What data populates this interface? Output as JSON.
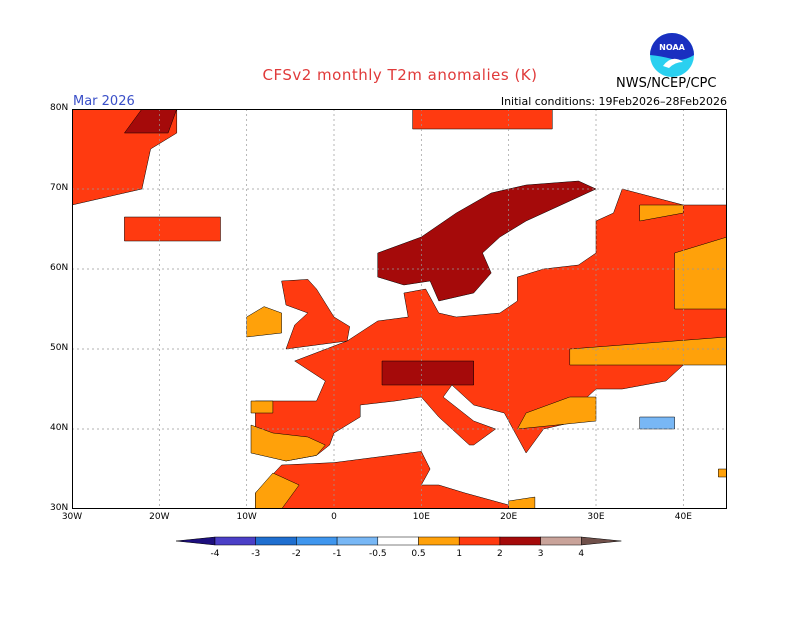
{
  "header": {
    "title": "CFSv2 monthly T2m anomalies (K)",
    "month": "Mar 2026",
    "initial_conditions": "Initial conditions: 19Feb2026–28Feb2026",
    "agency": "NWS/NCEP/CPC",
    "logo_text": "NOAA"
  },
  "axes": {
    "lat_labels": [
      "80N",
      "70N",
      "60N",
      "50N",
      "40N",
      "30N"
    ],
    "lat_values": [
      80,
      70,
      60,
      50,
      40,
      30
    ],
    "lon_labels": [
      "30W",
      "20W",
      "10W",
      "0",
      "10E",
      "20E",
      "30E",
      "40E"
    ],
    "lon_values": [
      -30,
      -20,
      -10,
      0,
      10,
      20,
      30,
      40
    ],
    "lon_range": [
      -30,
      45
    ],
    "lat_range": [
      30,
      80
    ]
  },
  "colorbar": {
    "labels": [
      "-4",
      "-3",
      "-2",
      "-1",
      "-0.5",
      "0.5",
      "1",
      "2",
      "3",
      "4"
    ],
    "colors": [
      "#1d0f7e",
      "#4b3fc7",
      "#1f6fd0",
      "#3f96ee",
      "#78b7f5",
      "#ffffff",
      "#ffa10a",
      "#ff3a10",
      "#a50a0a",
      "#c9a39a",
      "#70504a"
    ]
  },
  "colors": {
    "orange": "#ffa10a",
    "red": "#ff3a10",
    "darkred": "#a50a0a",
    "lightblue": "#78b7f5"
  }
}
